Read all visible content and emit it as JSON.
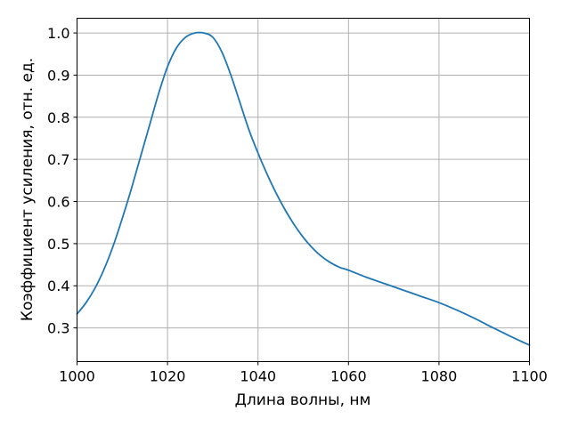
{
  "chart_data": {
    "type": "line",
    "title": "",
    "xlabel": "Длина волны, нм",
    "ylabel": "Коэффициент усиления, отн. ед.",
    "xlim": [
      1000,
      1100
    ],
    "ylim": [
      0.22,
      1.035
    ],
    "xticks": [
      1000,
      1020,
      1040,
      1060,
      1080,
      1100
    ],
    "yticks": [
      0.3,
      0.4,
      0.5,
      0.6,
      0.7,
      0.8,
      0.9,
      1.0
    ],
    "xtick_labels": [
      "1000",
      "1020",
      "1040",
      "1060",
      "1080",
      "1100"
    ],
    "ytick_labels": [
      "0.3",
      "0.4",
      "0.5",
      "0.6",
      "0.7",
      "0.8",
      "0.9",
      "1.0"
    ],
    "grid": true,
    "legend": "none",
    "series": [
      {
        "color": "#1f77b4",
        "x": [
          1000,
          1002,
          1004,
          1006,
          1008,
          1010,
          1012,
          1014,
          1016,
          1018,
          1020,
          1022,
          1024,
          1026,
          1028,
          1030,
          1032,
          1034,
          1036,
          1038,
          1040,
          1042,
          1044,
          1046,
          1048,
          1050,
          1052,
          1054,
          1056,
          1058,
          1060,
          1064,
          1068,
          1072,
          1076,
          1080,
          1084,
          1088,
          1092,
          1096,
          1100
        ],
        "y": [
          0.333,
          0.36,
          0.395,
          0.44,
          0.495,
          0.56,
          0.63,
          0.705,
          0.78,
          0.855,
          0.92,
          0.965,
          0.99,
          1.0,
          1.0,
          0.99,
          0.955,
          0.9,
          0.835,
          0.77,
          0.715,
          0.665,
          0.62,
          0.58,
          0.545,
          0.515,
          0.49,
          0.47,
          0.455,
          0.444,
          0.437,
          0.42,
          0.405,
          0.39,
          0.375,
          0.36,
          0.342,
          0.322,
          0.3,
          0.279,
          0.259
        ]
      }
    ]
  }
}
